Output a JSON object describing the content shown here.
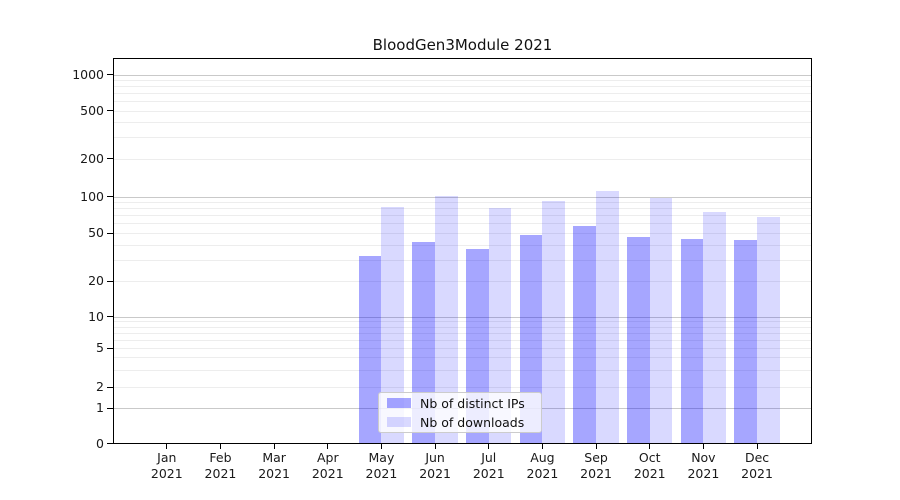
{
  "title": "BloodGen3Module 2021",
  "legend": {
    "items": [
      {
        "label": "Nb of distinct IPs",
        "color": "rgba(0,0,255,0.35)"
      },
      {
        "label": "Nb of downloads",
        "color": "rgba(0,0,255,0.15)"
      }
    ],
    "position": "lower center"
  },
  "chart_data": {
    "type": "bar",
    "title": "BloodGen3Module 2021",
    "categories": [
      "Jan 2021",
      "Feb 2021",
      "Mar 2021",
      "Apr 2021",
      "May 2021",
      "Jun 2021",
      "Jul 2021",
      "Aug 2021",
      "Sep 2021",
      "Oct 2021",
      "Nov 2021",
      "Dec 2021"
    ],
    "series": [
      {
        "name": "Nb of distinct IPs",
        "color": "rgba(0,0,255,0.35)",
        "values": [
          0,
          0,
          0,
          0,
          32,
          42,
          37,
          48,
          57,
          46,
          45,
          44
        ]
      },
      {
        "name": "Nb of downloads",
        "color": "rgba(0,0,255,0.15)",
        "values": [
          0,
          0,
          0,
          0,
          82,
          101,
          80,
          91,
          110,
          98,
          75,
          68
        ]
      }
    ],
    "xlabel": "",
    "ylabel": "",
    "yscale": "symlog",
    "yticks": [
      0,
      1,
      2,
      5,
      10,
      20,
      50,
      100,
      200,
      500,
      1000
    ],
    "ylim": [
      0,
      1450
    ],
    "grid": true,
    "gridline_major_color": "#c9c9c9",
    "gridline_minor_color": "#ededed",
    "legend_position": "lower center"
  }
}
